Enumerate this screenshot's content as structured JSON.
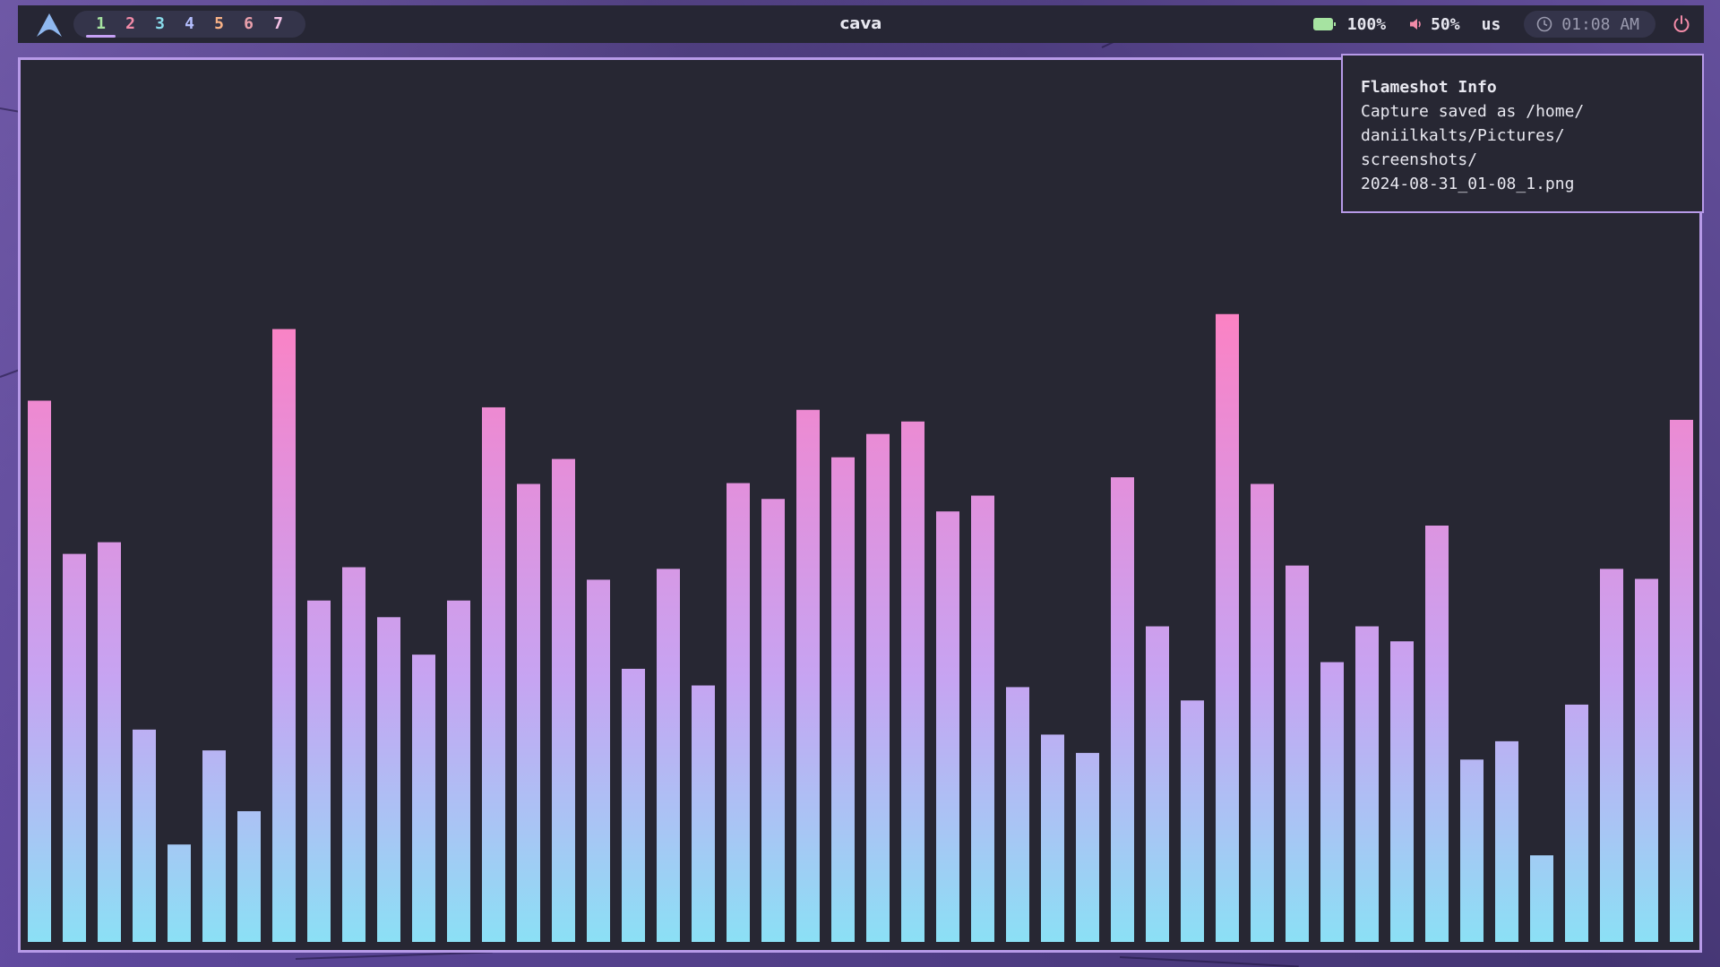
{
  "topbar": {
    "logo_icon": "arch-logo-icon",
    "workspaces": [
      {
        "label": "1",
        "color": "#a6e3a1",
        "active": true
      },
      {
        "label": "2",
        "color": "#f38ba8",
        "active": false
      },
      {
        "label": "3",
        "color": "#89dceb",
        "active": false
      },
      {
        "label": "4",
        "color": "#b4befe",
        "active": false
      },
      {
        "label": "5",
        "color": "#fab387",
        "active": false
      },
      {
        "label": "6",
        "color": "#eba0ac",
        "active": false
      },
      {
        "label": "7",
        "color": "#f5c2e7",
        "active": false
      }
    ],
    "window_title": "cava",
    "battery": {
      "icon": "battery-icon",
      "value": "100%",
      "color": "#a6e3a1"
    },
    "volume": {
      "icon": "volume-icon",
      "value": "50%",
      "color": "#f38ba8"
    },
    "keyboard_layout": "us",
    "clock": {
      "icon": "clock-icon",
      "time": "01:08 AM"
    },
    "power": {
      "icon": "power-icon",
      "color": "#f38ba8"
    }
  },
  "notification": {
    "title": "Flameshot Info",
    "body": "Capture saved as /home/\ndaniilkalts/Pictures/\nscreenshots/\n2024-08-31_01-08_1.png"
  },
  "visualizer": {
    "app": "cava",
    "gradient": [
      "#8be0f5",
      "#a9c4f4",
      "#c6a4f2",
      "#e290dc",
      "#ff80c0"
    ],
    "max_level": 1.0,
    "levels": [
      0.65,
      0.466,
      0.48,
      0.255,
      0.117,
      0.23,
      0.157,
      0.736,
      0.41,
      0.45,
      0.39,
      0.345,
      0.41,
      0.642,
      0.55,
      0.58,
      0.435,
      0.328,
      0.448,
      0.308,
      0.551,
      0.532,
      0.639,
      0.582,
      0.61,
      0.625,
      0.517,
      0.536,
      0.306,
      0.249,
      0.227,
      0.558,
      0.379,
      0.29,
      0.754,
      0.55,
      0.452,
      0.336,
      0.379,
      0.361,
      0.5,
      0.219,
      0.241,
      0.104,
      0.285,
      0.448,
      0.436,
      0.627
    ]
  }
}
